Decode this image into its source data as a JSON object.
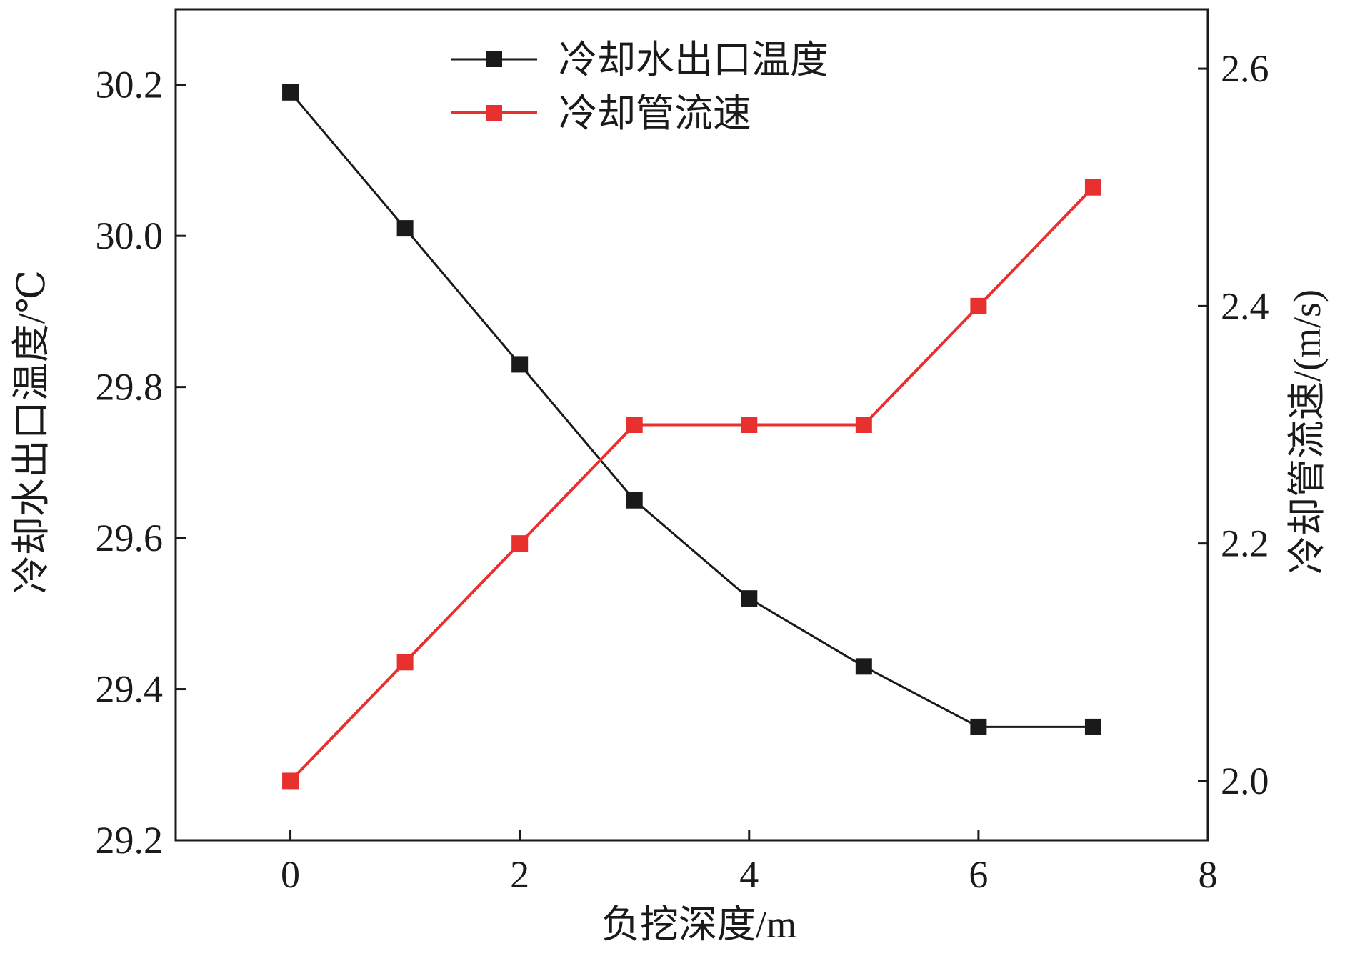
{
  "chart_data": {
    "type": "line",
    "xlabel": "负挖深度/m",
    "ylabel_left": "冷却水出口温度/℃",
    "ylabel_right": "冷却管流速/(m/s)",
    "xlim": [
      -1,
      8
    ],
    "xticks": [
      0,
      2,
      4,
      6,
      8
    ],
    "xtick_labels": [
      "0",
      "2",
      "4",
      "6",
      "8"
    ],
    "ylim_left": [
      29.2,
      30.3
    ],
    "yticks_left": [
      29.2,
      29.4,
      29.6,
      29.8,
      30.0,
      30.2
    ],
    "ytick_labels_left": [
      "29.2",
      "29.4",
      "29.6",
      "29.8",
      "30.0",
      "30.2"
    ],
    "ylim_right": [
      1.95,
      2.65
    ],
    "yticks_right": [
      2.0,
      2.2,
      2.4,
      2.6
    ],
    "ytick_labels_right": [
      "2.0",
      "2.2",
      "2.4",
      "2.6"
    ],
    "grid": false,
    "legend_position": "top-center",
    "x": [
      0,
      1,
      2,
      3,
      4,
      5,
      6,
      7
    ],
    "series": [
      {
        "name": "冷却水出口温度",
        "axis": "left",
        "color": "#1a1a1a",
        "marker": "square",
        "values": [
          30.19,
          30.01,
          29.83,
          29.65,
          29.52,
          29.43,
          29.35,
          29.35
        ]
      },
      {
        "name": "冷却管流速",
        "axis": "right",
        "color": "#e8312e",
        "marker": "square",
        "values": [
          2.0,
          2.1,
          2.2,
          2.3,
          2.3,
          2.3,
          2.4,
          2.5
        ]
      }
    ]
  }
}
